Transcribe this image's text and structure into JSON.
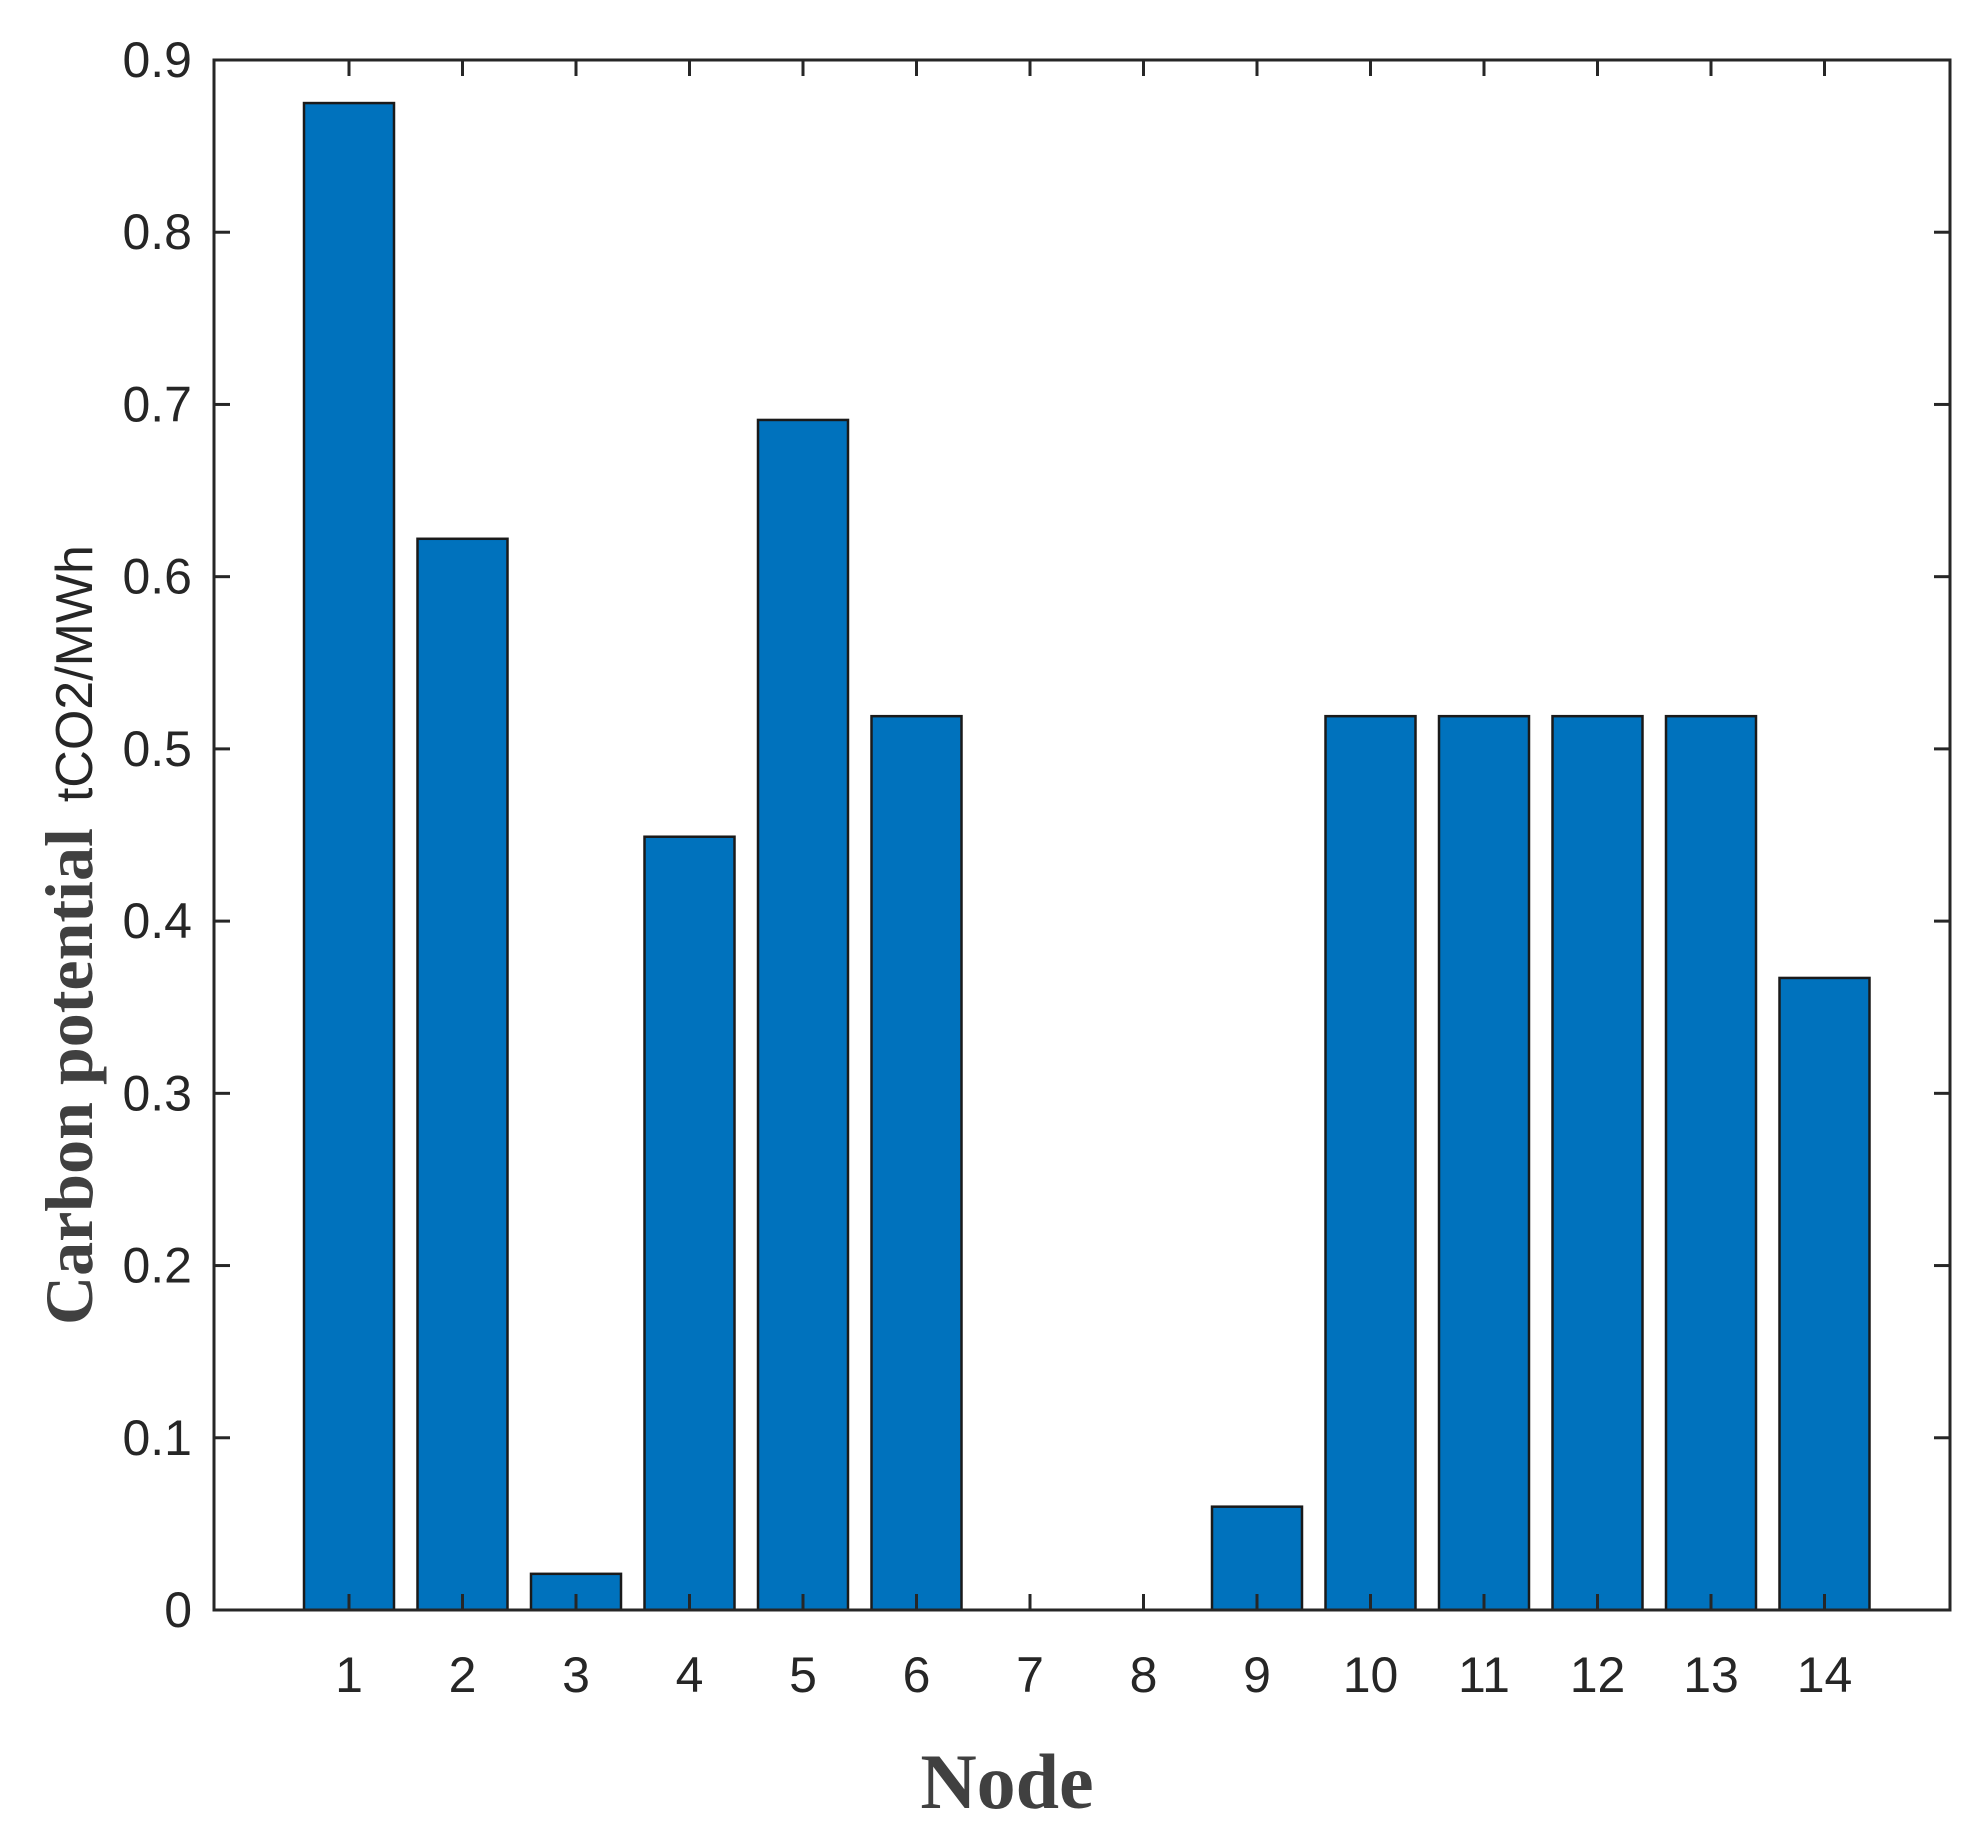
{
  "chart_data": {
    "type": "bar",
    "categories": [
      "1",
      "2",
      "3",
      "4",
      "5",
      "6",
      "7",
      "8",
      "9",
      "10",
      "11",
      "12",
      "13",
      "14"
    ],
    "values": [
      0.875,
      0.622,
      0.021,
      0.449,
      0.691,
      0.519,
      0,
      0,
      0.06,
      0.519,
      0.519,
      0.519,
      0.519,
      0.367
    ],
    "xlabel": "Node",
    "ylabel_main": "Carbon potential",
    "ylabel_unit": "tCO2/MWh",
    "ylim": [
      0,
      0.9
    ],
    "yticks": [
      "0",
      "0.1",
      "0.2",
      "0.3",
      "0.4",
      "0.5",
      "0.6",
      "0.7",
      "0.8",
      "0.9"
    ],
    "bar_color": "#0072BD",
    "bar_edge_color": "#1a1a1a",
    "axis_color": "#262626",
    "grid": false,
    "box": true
  }
}
